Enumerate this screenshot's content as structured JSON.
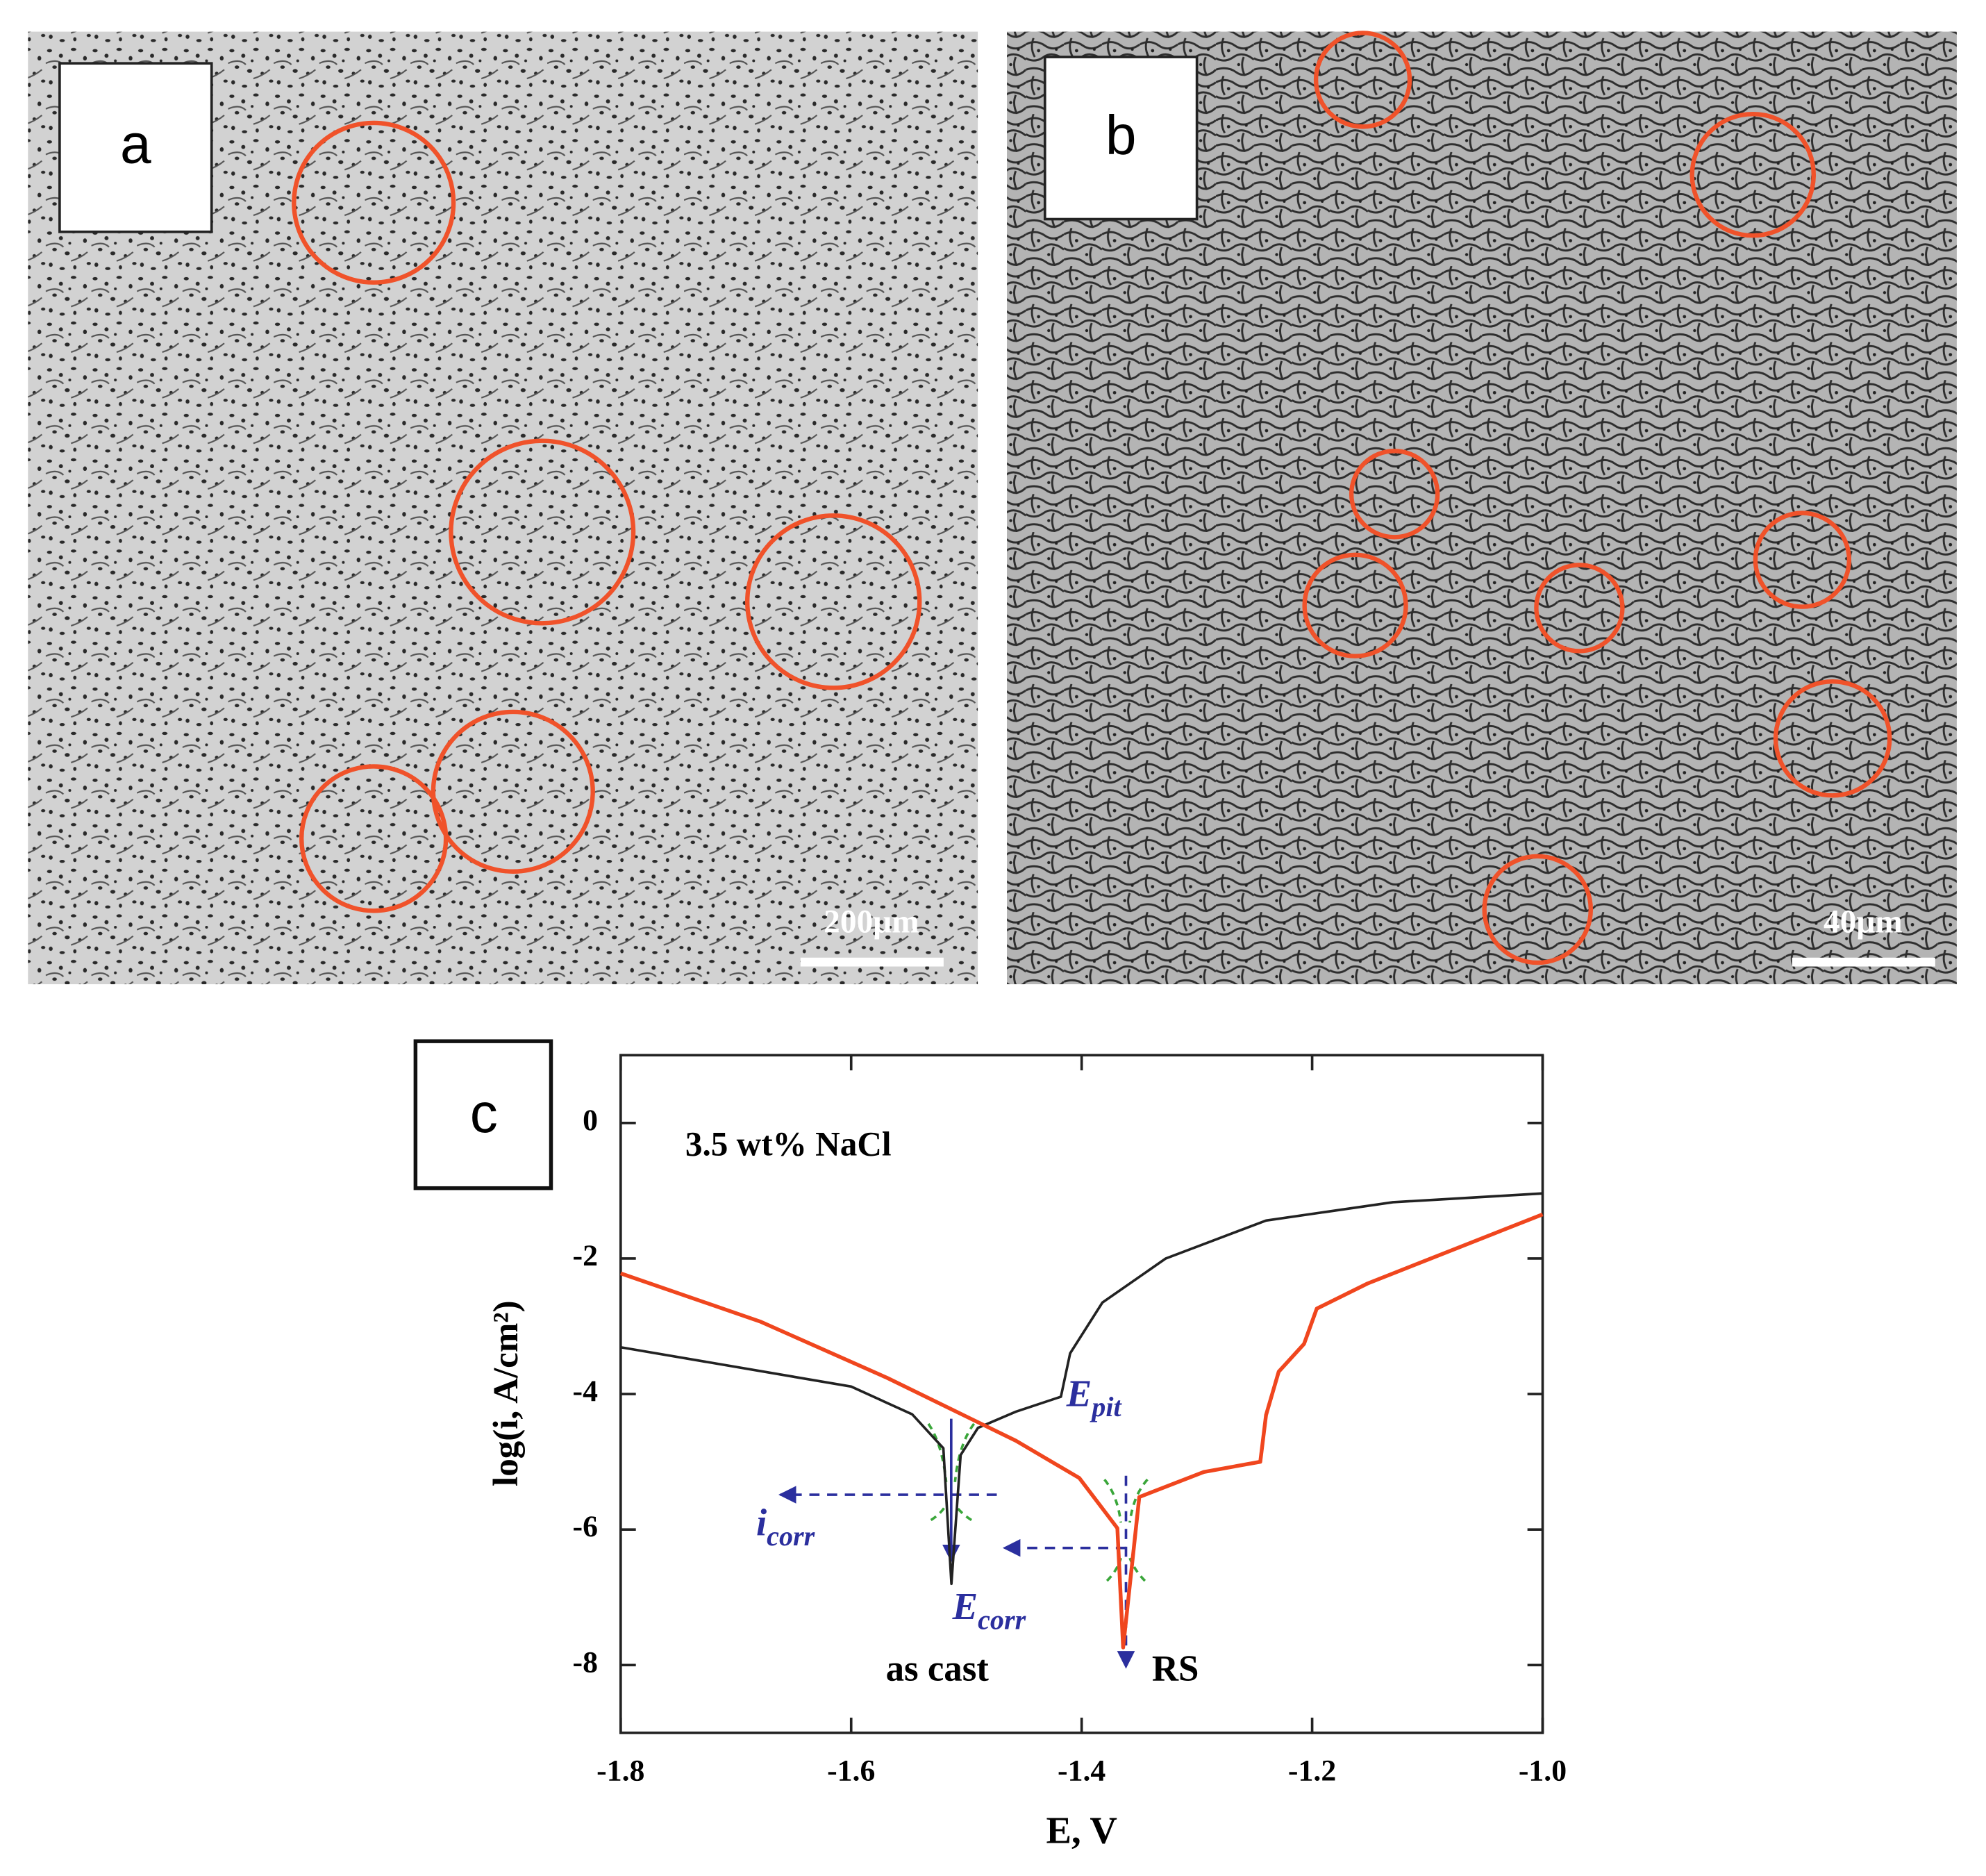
{
  "panels": [
    {
      "label": "a",
      "scale_bar": "200μm"
    },
    {
      "label": "b",
      "scale_bar": "40μm"
    },
    {
      "label": "c"
    }
  ],
  "chart_data": {
    "type": "line",
    "x_label": "E, V",
    "y_label": "log(i, A/cm²)",
    "xlim": [
      -1.8,
      -1.0
    ],
    "xticks": [
      -1.8,
      -1.6,
      -1.4,
      -1.2,
      {
        "value": -1,
        "label": "-1.0"
      }
    ],
    "ylim": [
      -9,
      1
    ],
    "yticks": [
      0,
      -2,
      -4,
      -6,
      -8
    ],
    "annotations": {
      "solution": "3.5 wt% NaCl",
      "e_pit": {
        "main": "E",
        "sub": "pit"
      },
      "i_corr": {
        "main": "i",
        "sub": "corr"
      },
      "e_corr": {
        "main": "E",
        "sub": "corr"
      }
    },
    "series": [
      {
        "name": "as cast",
        "color": "#222222",
        "x": [
          -1.8,
          -1.6,
          -1.547,
          -1.52,
          -1.513,
          -1.505,
          -1.49,
          -1.457,
          -1.418,
          -1.41,
          -1.382,
          -1.327,
          -1.24,
          -1.13,
          -1.0
        ],
        "values": [
          -3.31,
          -3.89,
          -4.3,
          -4.8,
          -6.8,
          -4.9,
          -4.5,
          -4.26,
          -4.04,
          -3.4,
          -2.65,
          -2.0,
          -1.44,
          -1.17,
          -1.04
        ]
      },
      {
        "name": "RS",
        "color": "#f0461e",
        "x": [
          -1.8,
          -1.679,
          -1.569,
          -1.457,
          -1.402,
          -1.369,
          -1.364,
          -1.35,
          -1.294,
          -1.245,
          -1.24,
          -1.229,
          -1.207,
          -1.196,
          -1.152,
          -1.097,
          -1.0
        ],
        "values": [
          -2.22,
          -2.93,
          -3.76,
          -4.69,
          -5.24,
          -5.98,
          -7.74,
          -5.52,
          -5.15,
          -5.0,
          -4.31,
          -3.67,
          -3.26,
          -2.74,
          -2.37,
          -2.0,
          -1.35
        ]
      }
    ]
  }
}
